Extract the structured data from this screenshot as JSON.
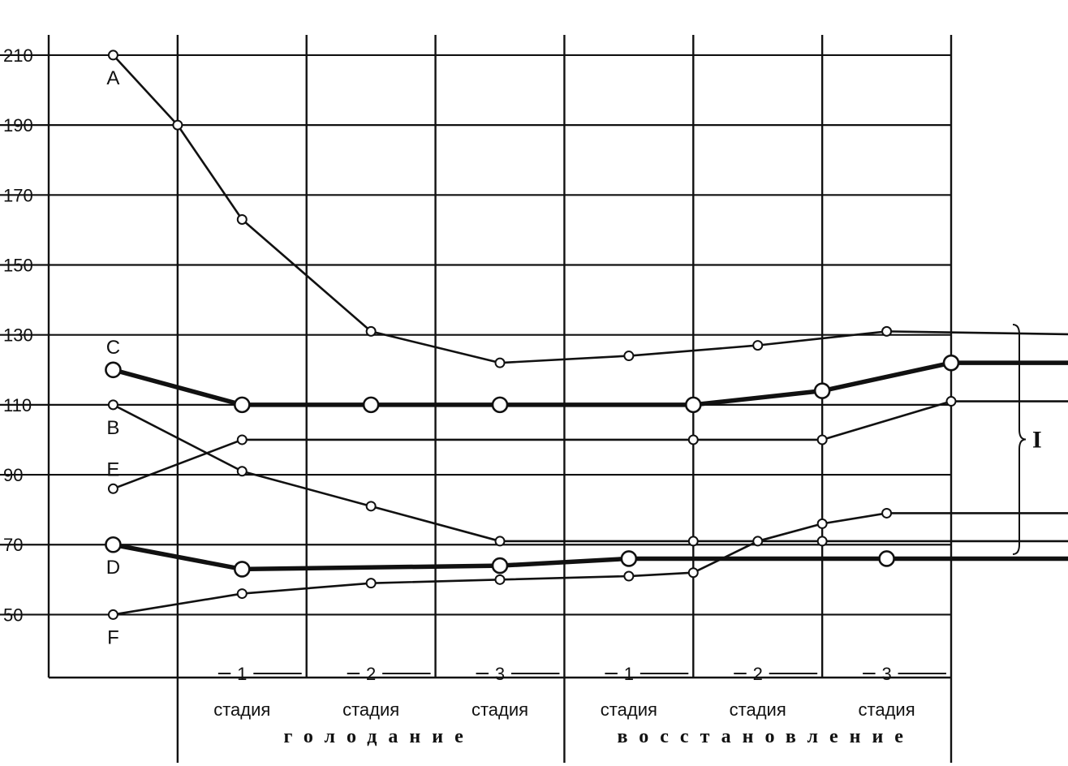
{
  "chart_data": {
    "type": "line",
    "title": "",
    "xlabel": "",
    "ylabel": "",
    "ylim": [
      32,
      213
    ],
    "y_ticks": [
      "210",
      "190",
      "170",
      "150",
      "130",
      "110",
      "90",
      "70",
      "50"
    ],
    "grid": true,
    "x_positions": [
      "start",
      "s1_mid",
      "1",
      "s2_mid",
      "2",
      "s3_mid",
      "3",
      "r1_mid",
      "4",
      "r2_mid",
      "5",
      "r3_mid",
      "6",
      "end"
    ],
    "stage_numbers": [
      "1",
      "2",
      "3",
      "1",
      "2",
      "3"
    ],
    "stage_word": "стадия",
    "periods": [
      "голодание",
      "восстановление"
    ],
    "bracket_label": "I",
    "series": [
      {
        "name": "A",
        "weight": "thin",
        "points": [
          [
            0,
            210
          ],
          [
            0.5,
            190
          ],
          [
            1,
            163
          ],
          [
            2,
            131
          ],
          [
            3,
            122
          ],
          [
            4,
            124
          ],
          [
            5,
            127
          ],
          [
            6,
            131
          ],
          [
            7.7,
            130
          ]
        ]
      },
      {
        "name": "C",
        "weight": "thick",
        "points": [
          [
            0,
            120
          ],
          [
            1,
            110
          ],
          [
            2,
            110
          ],
          [
            3,
            110
          ],
          [
            4.5,
            110
          ],
          [
            5.5,
            114
          ],
          [
            6.5,
            122
          ],
          [
            7.7,
            122
          ]
        ]
      },
      {
        "name": "B",
        "weight": "thin",
        "points": [
          [
            0,
            110
          ],
          [
            1,
            91
          ],
          [
            2,
            81
          ],
          [
            3,
            71
          ],
          [
            4.5,
            71
          ],
          [
            5.5,
            71
          ],
          [
            7.7,
            71
          ]
        ]
      },
      {
        "name": "E",
        "weight": "thin",
        "points": [
          [
            0,
            86
          ],
          [
            1,
            100
          ],
          [
            4.5,
            100
          ],
          [
            5.5,
            100
          ],
          [
            6.5,
            111
          ],
          [
            7.7,
            111
          ]
        ]
      },
      {
        "name": "D",
        "weight": "thick",
        "points": [
          [
            0,
            70
          ],
          [
            1,
            63
          ],
          [
            3,
            64
          ],
          [
            4,
            66
          ],
          [
            6,
            66
          ],
          [
            7.7,
            66
          ]
        ]
      },
      {
        "name": "F",
        "weight": "thin",
        "points": [
          [
            0,
            50
          ],
          [
            1,
            56
          ],
          [
            2,
            59
          ],
          [
            3,
            60
          ],
          [
            4,
            61
          ],
          [
            4.5,
            62
          ],
          [
            5,
            71
          ],
          [
            5.5,
            76
          ],
          [
            6,
            79
          ],
          [
            7.7,
            79
          ]
        ]
      }
    ],
    "hollow_markers": true
  }
}
